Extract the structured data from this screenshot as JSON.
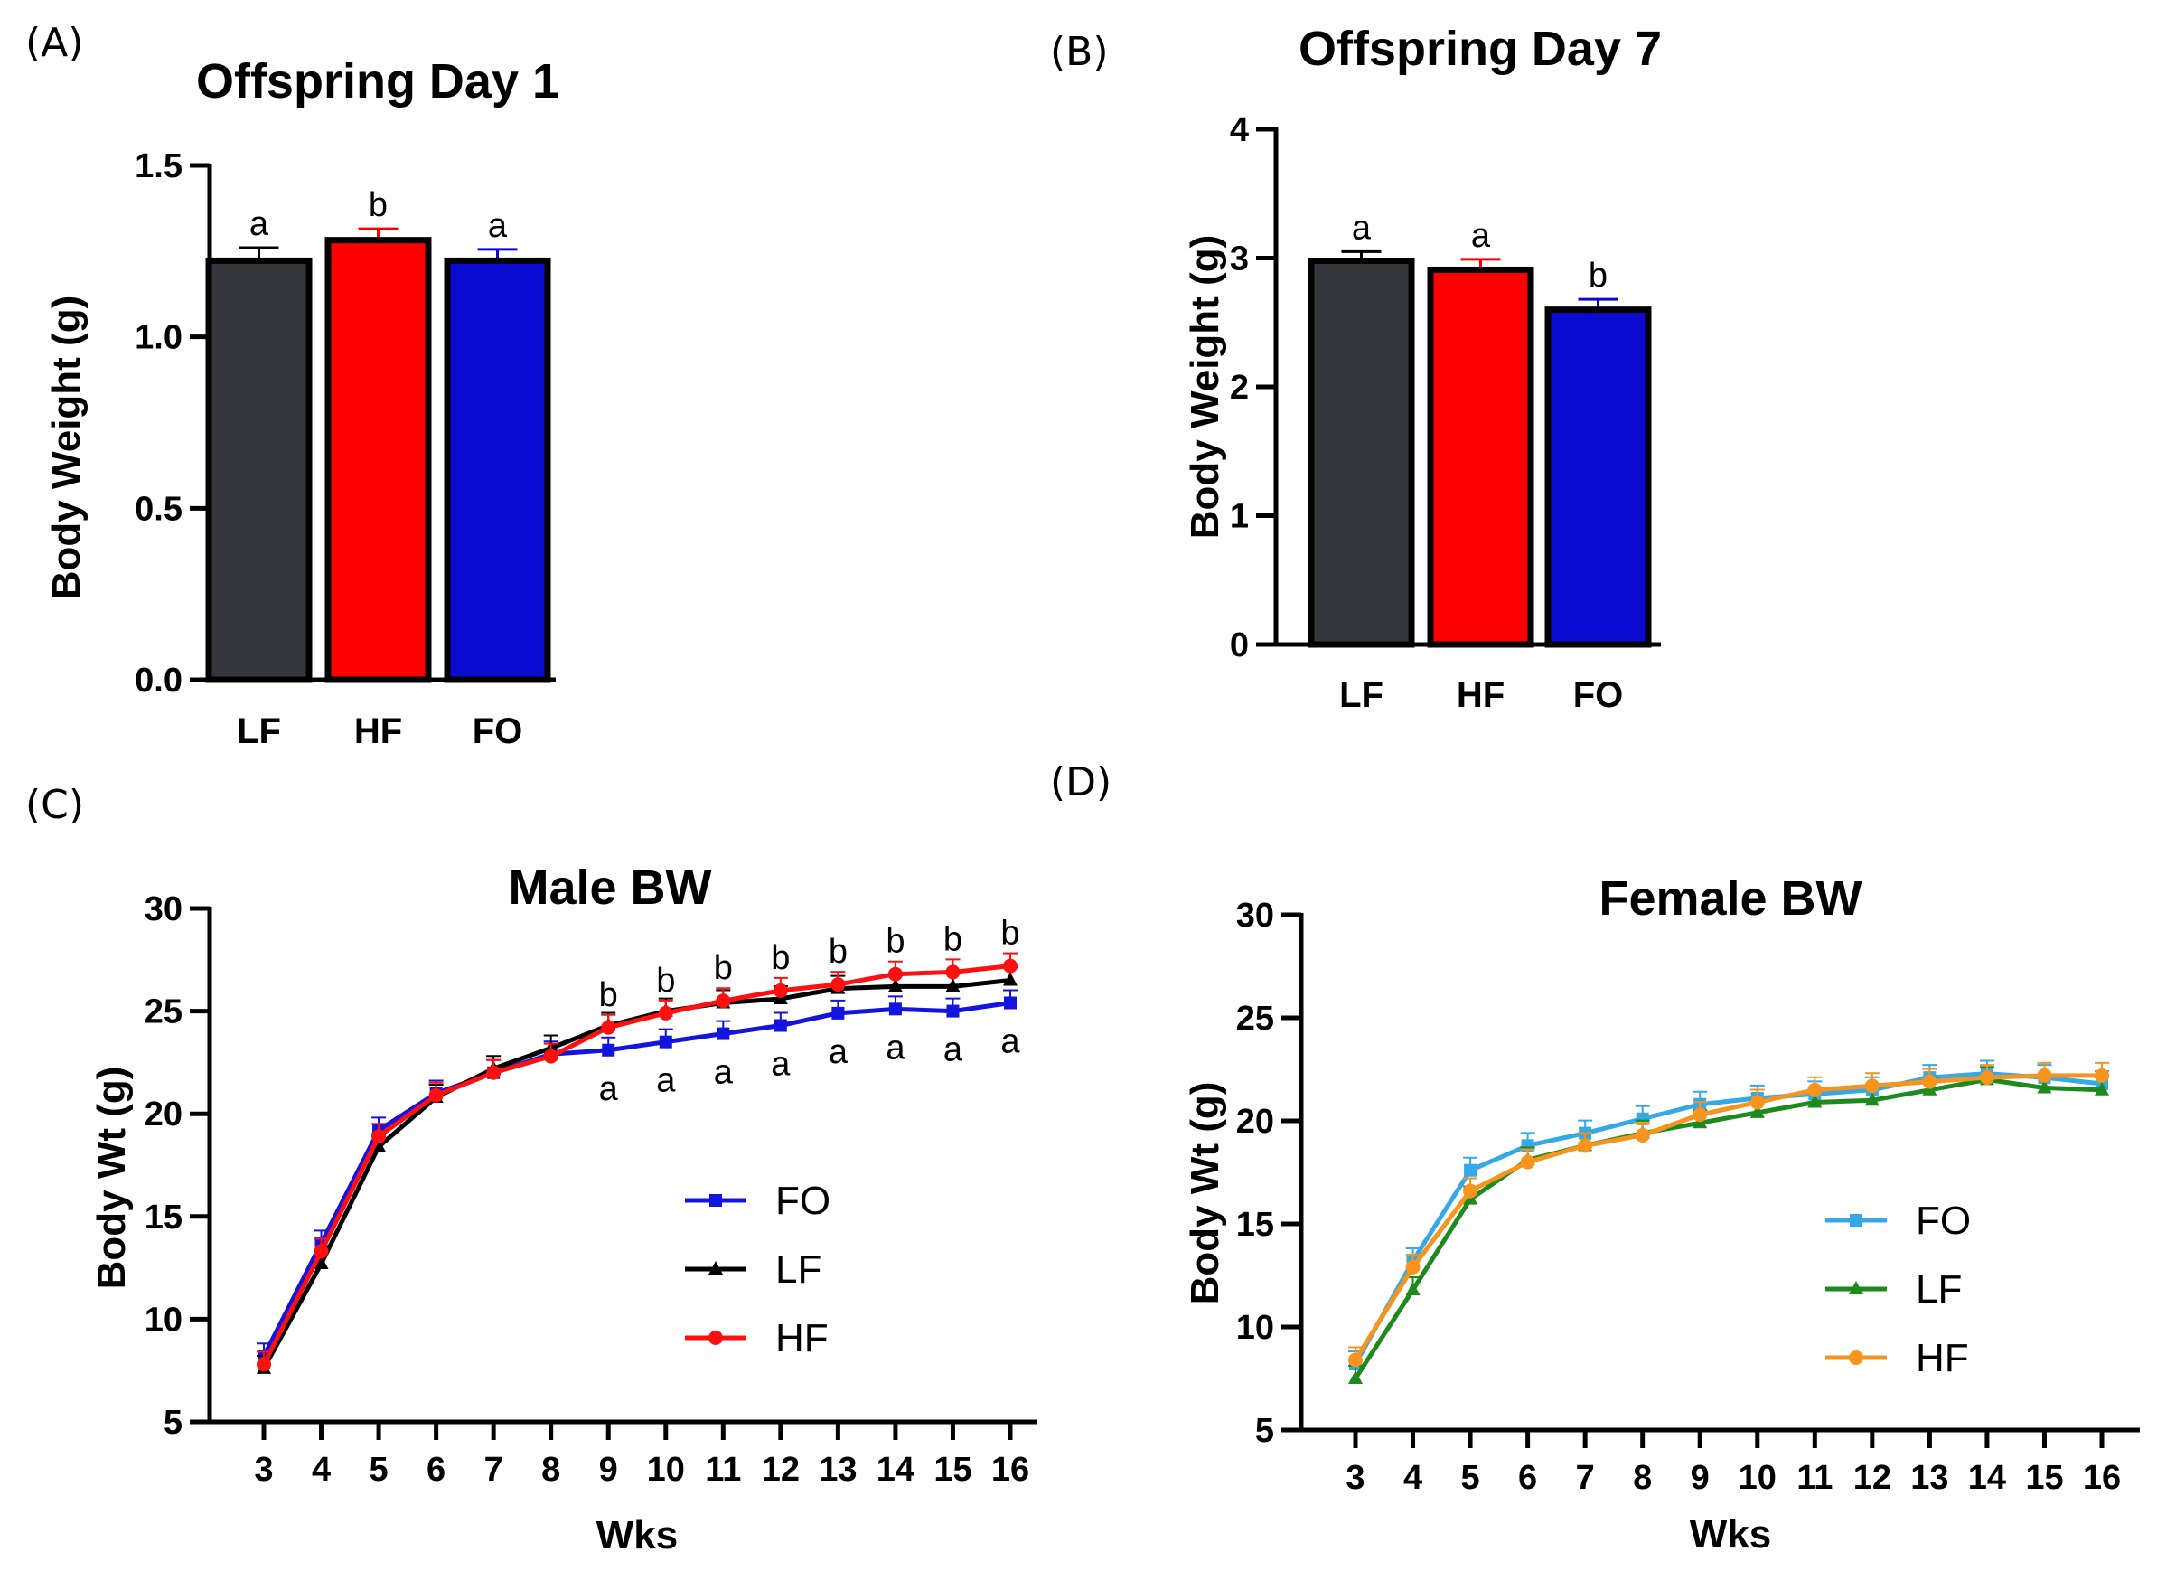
{
  "chart_data": [
    {
      "panel": "(A)",
      "type": "bar",
      "title": "Offspring  Day 1",
      "xlabel": "",
      "ylabel": "Body Weight (g)",
      "ylim": [
        0,
        1.5
      ],
      "yticks": [
        "0.0",
        "0.5",
        "1.0",
        "1.5"
      ],
      "categories": [
        "LF",
        "HF",
        "FO"
      ],
      "values": [
        1.23,
        1.29,
        1.23
      ],
      "errors": [
        0.03,
        0.025,
        0.025
      ],
      "colors": [
        "#34383c",
        "#ff0000",
        "#0a0ad0"
      ],
      "error_colors": [
        "#000000",
        "#ff0000",
        "#0a0ad0"
      ],
      "significance": [
        "a",
        "b",
        "a"
      ]
    },
    {
      "panel": "(B)",
      "type": "bar",
      "title": "Offspring  Day 7",
      "xlabel": "",
      "ylabel": "Body Weight (g)",
      "ylim": [
        0,
        4
      ],
      "yticks": [
        "0",
        "1",
        "2",
        "3",
        "4"
      ],
      "categories": [
        "LF",
        "HF",
        "FO"
      ],
      "values": [
        3.0,
        2.93,
        2.62
      ],
      "errors": [
        0.05,
        0.06,
        0.06
      ],
      "colors": [
        "#34383c",
        "#ff0000",
        "#0a0ad0"
      ],
      "error_colors": [
        "#000000",
        "#ff0000",
        "#0a0ad0"
      ],
      "significance": [
        "a",
        "a",
        "b"
      ]
    },
    {
      "panel": "(C)",
      "type": "line",
      "title": "Male  BW",
      "xlabel": "Wks",
      "ylabel": "Body  Wt (g)",
      "ylim": [
        5,
        30
      ],
      "yticks": [
        "5",
        "10",
        "15",
        "20",
        "25",
        "30"
      ],
      "x": [
        3,
        4,
        5,
        6,
        7,
        8,
        9,
        10,
        11,
        12,
        13,
        14,
        15,
        16
      ],
      "series": [
        {
          "name": "FO",
          "color": "#1414e0",
          "marker": "square",
          "values": [
            8.2,
            13.7,
            19.2,
            21.0,
            22.0,
            22.9,
            23.1,
            23.5,
            23.9,
            24.3,
            24.9,
            25.1,
            25.0,
            25.4
          ]
        },
        {
          "name": "LF",
          "color": "#000000",
          "marker": "triangle",
          "values": [
            7.6,
            12.7,
            18.4,
            20.8,
            22.2,
            23.2,
            24.3,
            25.0,
            25.4,
            25.6,
            26.1,
            26.2,
            26.2,
            26.5
          ]
        },
        {
          "name": "HF",
          "color": "#ff1010",
          "marker": "circle",
          "values": [
            7.8,
            13.3,
            18.9,
            20.9,
            22.0,
            22.8,
            24.2,
            24.9,
            25.5,
            26.0,
            26.3,
            26.8,
            26.9,
            27.2
          ]
        }
      ],
      "annotations_upper": [
        "b",
        "b",
        "b",
        "b",
        "b",
        "b",
        "b",
        "b"
      ],
      "annotations_lower": [
        "a",
        "a",
        "a",
        "a",
        "a",
        "a",
        "a",
        "a"
      ],
      "annotated_x": [
        9,
        10,
        11,
        12,
        13,
        14,
        15,
        16
      ],
      "legend": "center-right"
    },
    {
      "panel": "(D)",
      "type": "line",
      "title": "Female  BW",
      "xlabel": "Wks",
      "ylabel": "Body  Wt (g)",
      "ylim": [
        5,
        30
      ],
      "yticks": [
        "5",
        "10",
        "15",
        "20",
        "25",
        "30"
      ],
      "x": [
        3,
        4,
        5,
        6,
        7,
        8,
        9,
        10,
        11,
        12,
        13,
        14,
        15,
        16
      ],
      "series": [
        {
          "name": "FO",
          "color": "#35a8e8",
          "marker": "square",
          "values": [
            8.2,
            13.2,
            17.6,
            18.8,
            19.4,
            20.1,
            20.8,
            21.1,
            21.3,
            21.5,
            22.1,
            22.3,
            22.1,
            21.8
          ]
        },
        {
          "name": "LF",
          "color": "#1c8a1c",
          "marker": "triangle",
          "values": [
            7.5,
            11.8,
            16.2,
            18.1,
            18.8,
            19.4,
            19.9,
            20.4,
            20.9,
            21.0,
            21.5,
            22.0,
            21.6,
            21.5
          ]
        },
        {
          "name": "HF",
          "color": "#f7941d",
          "marker": "circle",
          "values": [
            8.4,
            12.9,
            16.6,
            18.0,
            18.8,
            19.3,
            20.3,
            20.9,
            21.5,
            21.7,
            21.9,
            22.1,
            22.2,
            22.2
          ]
        }
      ],
      "legend": "center-right"
    }
  ]
}
